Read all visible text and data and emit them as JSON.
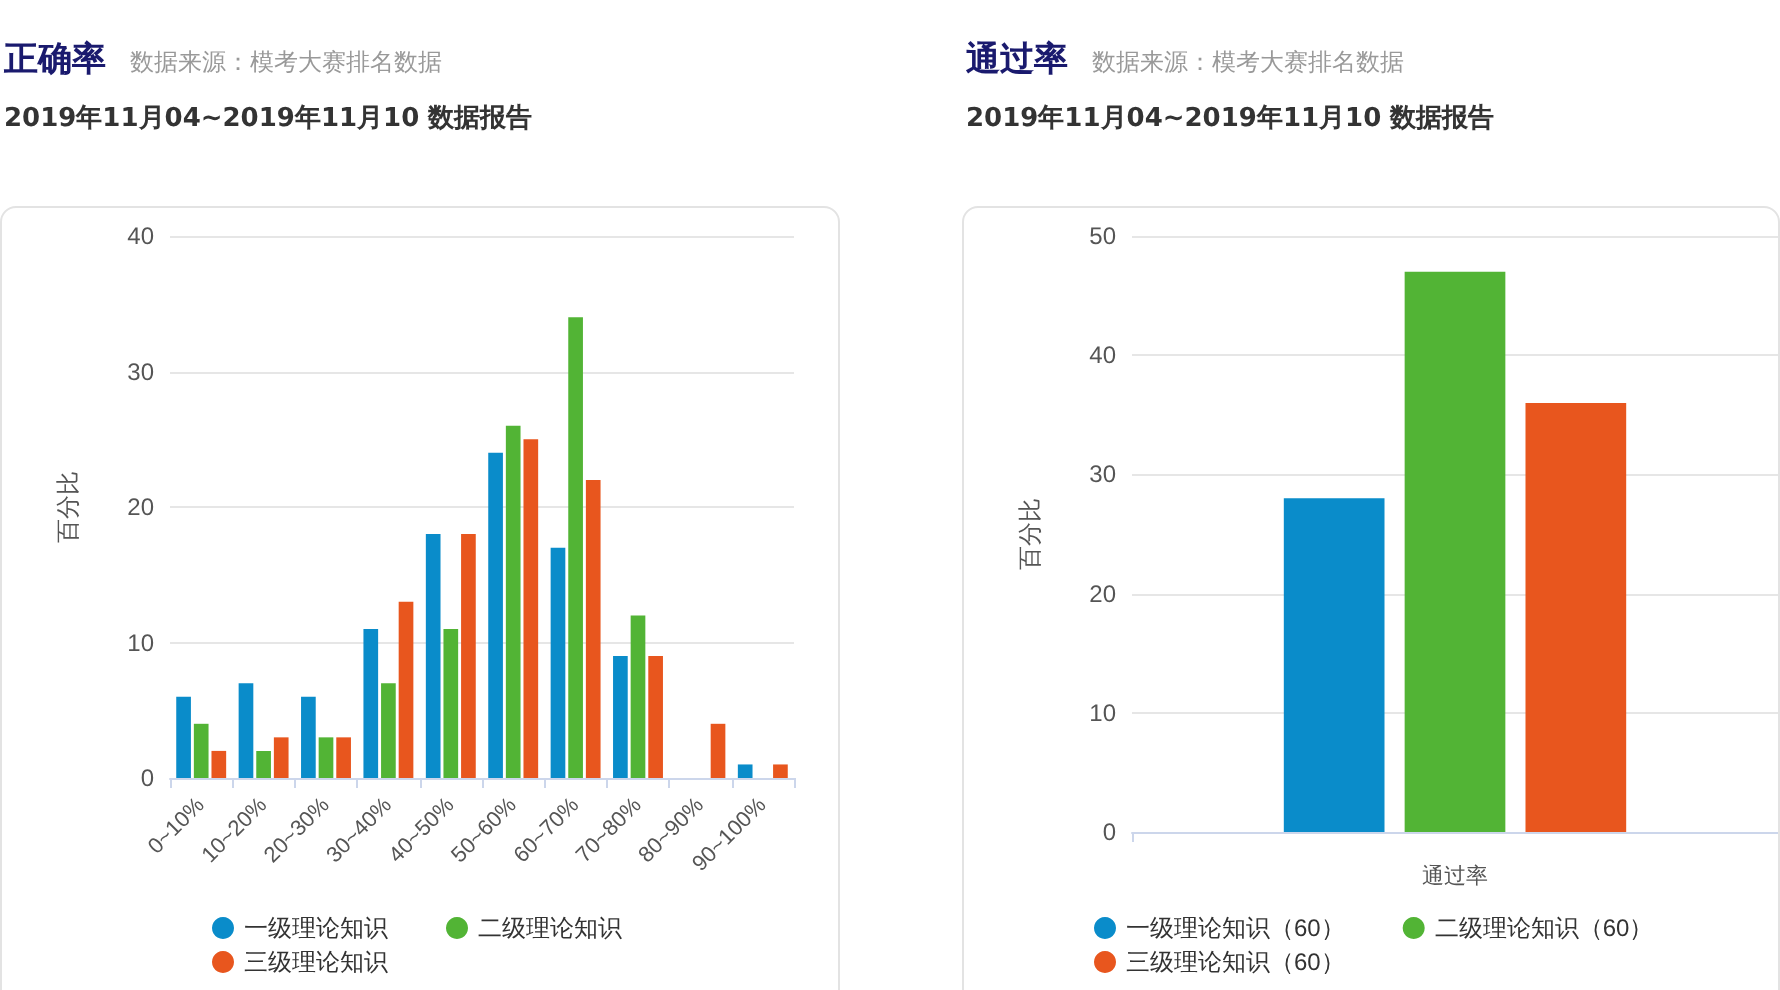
{
  "chart_data": [
    {
      "type": "bar",
      "title": "正确率",
      "subtitle": "数据来源：模考大赛排名数据",
      "annotations": [
        "2019年11月04~2019年11月10 数据报告"
      ],
      "ylabel": "百分比",
      "categories": [
        "0~10%",
        "10~20%",
        "20~30%",
        "30~40%",
        "40~50%",
        "50~60%",
        "60~70%",
        "70~80%",
        "80~90%",
        "90~100%"
      ],
      "series": [
        {
          "name": "一级理论知识",
          "color": "#0a8cca",
          "values": [
            6,
            7,
            6,
            11,
            18,
            24,
            17,
            9,
            0,
            1
          ]
        },
        {
          "name": "二级理论知识",
          "color": "#52b435",
          "values": [
            4,
            2,
            3,
            7,
            11,
            26,
            34,
            12,
            0,
            0
          ]
        },
        {
          "name": "三级理论知识",
          "color": "#e8561e",
          "values": [
            2,
            3,
            3,
            13,
            18,
            25,
            22,
            9,
            4,
            1
          ]
        }
      ],
      "ylim": [
        0,
        40
      ],
      "yticks": [
        0,
        10,
        20,
        30,
        40
      ],
      "grid": "y",
      "legend": "bottom"
    },
    {
      "type": "bar",
      "title": "通过率",
      "subtitle": "数据来源：模考大赛排名数据",
      "annotations": [
        "2019年11月04~2019年11月10 数据报告"
      ],
      "ylabel": "百分比",
      "xlabel": "通过率",
      "categories": [
        null
      ],
      "series": [
        {
          "name": "一级理论知识（60）",
          "color": "#0a8cca",
          "values": [
            28
          ]
        },
        {
          "name": "二级理论知识（60）",
          "color": "#52b435",
          "values": [
            47
          ]
        },
        {
          "name": "三级理论知识（60）",
          "color": "#e8561e",
          "values": [
            36
          ]
        }
      ],
      "ylim": [
        0,
        50
      ],
      "yticks": [
        0,
        10,
        20,
        30,
        40,
        50
      ],
      "grid": "y",
      "legend": "bottom"
    }
  ]
}
